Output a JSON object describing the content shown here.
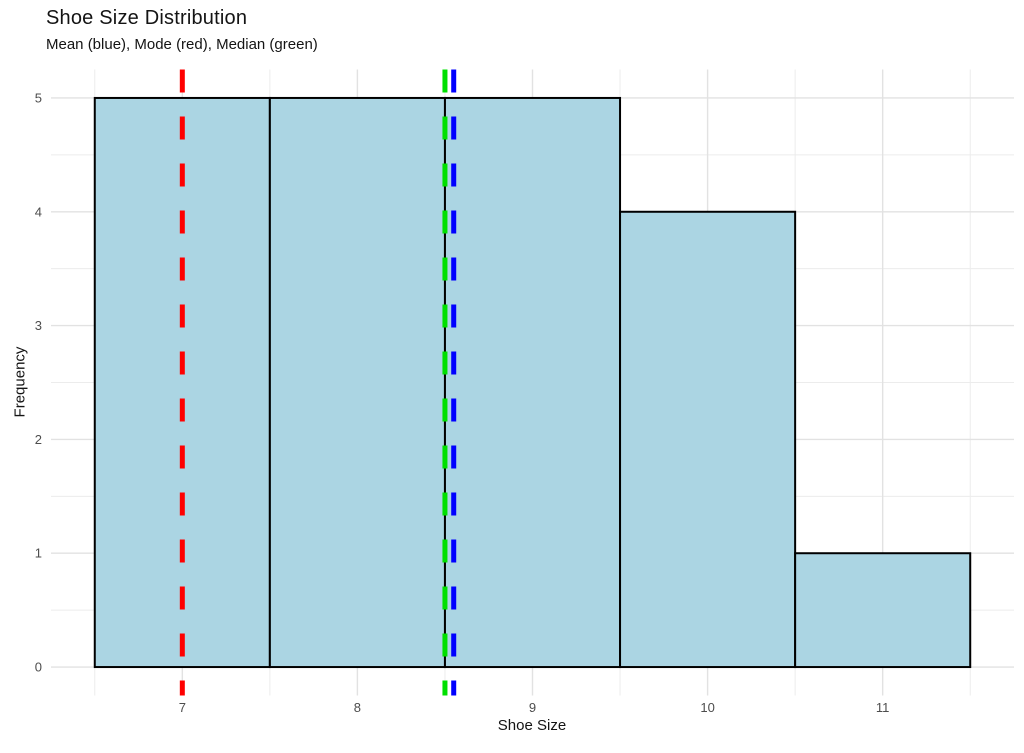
{
  "header": {
    "title": "Shoe Size Distribution",
    "subtitle": "Mean (blue), Mode (red), Median (green)"
  },
  "chart_data": {
    "type": "bar",
    "variant": "histogram",
    "title": "Shoe Size Distribution",
    "subtitle": "Mean (blue), Mode (red), Median (green)",
    "xlabel": "Shoe Size",
    "ylabel": "Frequency",
    "bin_edges": [
      6.5,
      7.5,
      8.5,
      9.5,
      10.5,
      11.5
    ],
    "bin_centers": [
      7,
      8,
      9,
      10,
      11
    ],
    "counts": [
      5,
      5,
      5,
      4,
      1
    ],
    "x_ticks": [
      7,
      8,
      9,
      10,
      11
    ],
    "y_ticks": [
      0,
      1,
      2,
      3,
      4,
      5
    ],
    "x_minor_gridlines": [
      6.5,
      7.5,
      8.5,
      9.5,
      10.5,
      11.5
    ],
    "y_minor_gridlines": [
      0.5,
      1.5,
      2.5,
      3.5,
      4.5
    ],
    "xlim": [
      6.25,
      11.75
    ],
    "ylim": [
      -0.25,
      5.25
    ],
    "grid": true,
    "legend_position": "none",
    "reference_lines": [
      {
        "name": "mode-line",
        "stat": "Mode",
        "value": 7,
        "color": "#FF0000"
      },
      {
        "name": "median-line",
        "stat": "Median",
        "value": 8.5,
        "color": "#00E000"
      },
      {
        "name": "mean-line",
        "stat": "Mean",
        "value": 8.55,
        "color": "#0000FF"
      }
    ],
    "style": {
      "bar_fill": "#ABD5E3",
      "bar_stroke": "#000000",
      "grid_major_color": "#E2E2E2",
      "grid_minor_color": "#ECECEC",
      "tick_label_color": "#4D4D4D",
      "text_color": "#141414"
    }
  }
}
